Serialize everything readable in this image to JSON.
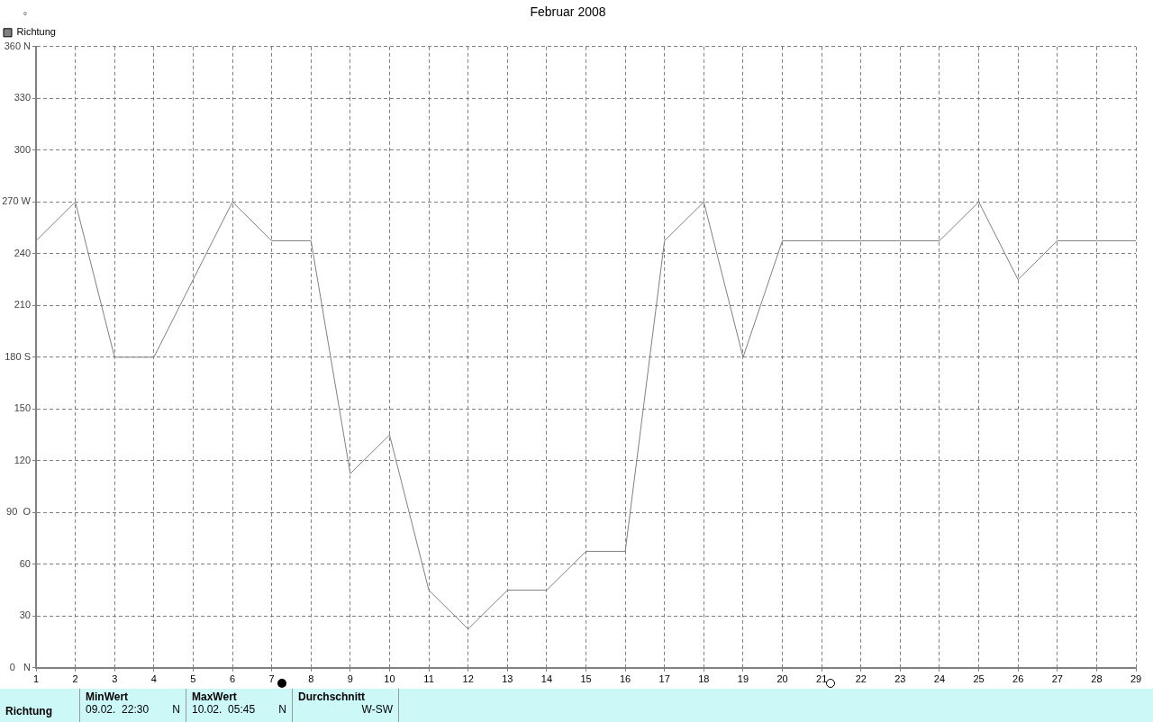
{
  "chart_data": {
    "type": "line",
    "title": "Februar 2008",
    "ylabel": "°",
    "x": [
      1,
      2,
      3,
      4,
      5,
      6,
      7,
      8,
      9,
      10,
      11,
      12,
      13,
      14,
      15,
      16,
      17,
      18,
      19,
      20,
      21,
      22,
      23,
      24,
      25,
      26,
      27,
      28,
      29
    ],
    "series": [
      {
        "name": "Richtung",
        "color": "#808080",
        "values": [
          247.5,
          270,
          180,
          180,
          225,
          270,
          247.5,
          247.5,
          112.5,
          135,
          45,
          22.5,
          45,
          45,
          67.5,
          67.5,
          247.5,
          270,
          180,
          247.5,
          247.5,
          247.5,
          247.5,
          247.5,
          270,
          225,
          247.5,
          247.5,
          247.5
        ]
      }
    ],
    "xlim": [
      1,
      29
    ],
    "xticks": [
      1,
      2,
      3,
      4,
      5,
      6,
      7,
      8,
      9,
      10,
      11,
      12,
      13,
      14,
      15,
      16,
      17,
      18,
      19,
      20,
      21,
      22,
      23,
      24,
      25,
      26,
      27,
      28,
      29
    ],
    "ylim": [
      0,
      360
    ],
    "yticks": [
      {
        "value": 0,
        "label": "0   N"
      },
      30,
      60,
      {
        "value": 90,
        "label": "90  O"
      },
      120,
      150,
      {
        "value": 180,
        "label": "180 S"
      },
      210,
      240,
      {
        "value": 270,
        "label": "270 W"
      },
      300,
      330,
      {
        "value": 360,
        "label": "360 N"
      }
    ],
    "grid": true,
    "legend": "top left",
    "marker": "none",
    "line_style": "solid",
    "annotations": [
      "Richtung",
      "MinWert",
      "09.02.  22:30",
      "N",
      "MaxWert",
      "10.02.  05:45",
      "N",
      "Durchschnitt",
      "W-SW"
    ]
  }
}
